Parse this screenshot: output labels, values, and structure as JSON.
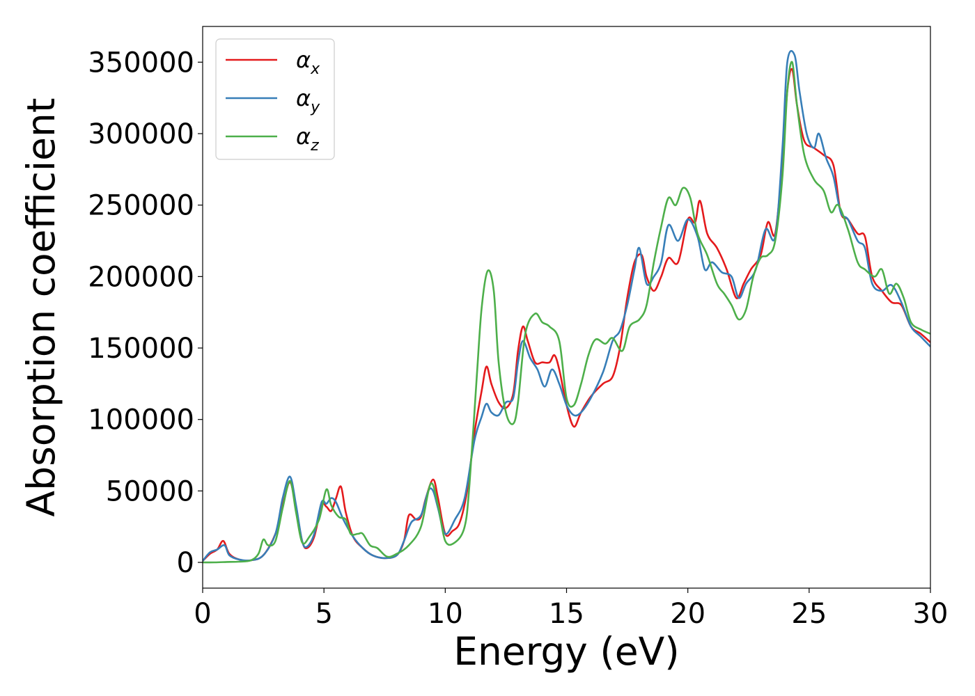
{
  "chart_data": {
    "type": "line",
    "title": "",
    "xlabel": "Energy (eV)",
    "ylabel": "Absorption coefficient",
    "xlim": [
      0,
      30
    ],
    "ylim": [
      -18000,
      375000
    ],
    "xticks": [
      0,
      5,
      10,
      15,
      20,
      25,
      30
    ],
    "xtick_labels": [
      "0",
      "5",
      "10",
      "15",
      "20",
      "25",
      "30"
    ],
    "yticks": [
      0,
      50000,
      100000,
      150000,
      200000,
      250000,
      300000,
      350000
    ],
    "ytick_labels": [
      "0",
      "50000",
      "100000",
      "150000",
      "200000",
      "250000",
      "300000",
      "350000"
    ],
    "grid": false,
    "legend_position": "top-left",
    "series": [
      {
        "name": "αx",
        "legend_base": "α",
        "legend_sub": "x",
        "color": "#e41a1c",
        "points": [
          [
            0,
            1000
          ],
          [
            0.3,
            6000
          ],
          [
            0.6,
            9000
          ],
          [
            0.85,
            15000
          ],
          [
            1.1,
            6000
          ],
          [
            1.5,
            2000
          ],
          [
            2.0,
            1500
          ],
          [
            2.5,
            5000
          ],
          [
            3.0,
            20000
          ],
          [
            3.3,
            40000
          ],
          [
            3.6,
            56000
          ],
          [
            3.85,
            38000
          ],
          [
            4.1,
            15000
          ],
          [
            4.3,
            10000
          ],
          [
            4.6,
            18000
          ],
          [
            4.9,
            40000
          ],
          [
            5.1,
            39000
          ],
          [
            5.3,
            36000
          ],
          [
            5.5,
            45000
          ],
          [
            5.7,
            53000
          ],
          [
            5.9,
            35000
          ],
          [
            6.2,
            18000
          ],
          [
            6.6,
            10000
          ],
          [
            7.0,
            5000
          ],
          [
            7.5,
            3000
          ],
          [
            8.0,
            5000
          ],
          [
            8.3,
            15000
          ],
          [
            8.5,
            33000
          ],
          [
            8.8,
            30000
          ],
          [
            9.0,
            32000
          ],
          [
            9.2,
            45000
          ],
          [
            9.5,
            58000
          ],
          [
            9.7,
            45000
          ],
          [
            10.0,
            20000
          ],
          [
            10.3,
            22000
          ],
          [
            10.6,
            28000
          ],
          [
            10.9,
            50000
          ],
          [
            11.2,
            90000
          ],
          [
            11.5,
            120000
          ],
          [
            11.7,
            137000
          ],
          [
            11.9,
            125000
          ],
          [
            12.2,
            112000
          ],
          [
            12.5,
            108000
          ],
          [
            12.8,
            118000
          ],
          [
            13.0,
            148000
          ],
          [
            13.2,
            165000
          ],
          [
            13.4,
            155000
          ],
          [
            13.7,
            140000
          ],
          [
            14.0,
            140000
          ],
          [
            14.3,
            140000
          ],
          [
            14.5,
            145000
          ],
          [
            14.7,
            135000
          ],
          [
            15.0,
            110000
          ],
          [
            15.3,
            95000
          ],
          [
            15.6,
            105000
          ],
          [
            16.0,
            116000
          ],
          [
            16.5,
            125000
          ],
          [
            16.9,
            130000
          ],
          [
            17.2,
            150000
          ],
          [
            17.5,
            185000
          ],
          [
            17.8,
            210000
          ],
          [
            18.1,
            215000
          ],
          [
            18.3,
            200000
          ],
          [
            18.6,
            190000
          ],
          [
            18.9,
            200000
          ],
          [
            19.2,
            213000
          ],
          [
            19.6,
            210000
          ],
          [
            20.0,
            240000
          ],
          [
            20.3,
            238000
          ],
          [
            20.5,
            253000
          ],
          [
            20.8,
            230000
          ],
          [
            21.2,
            220000
          ],
          [
            21.6,
            205000
          ],
          [
            22.0,
            185000
          ],
          [
            22.3,
            195000
          ],
          [
            22.6,
            205000
          ],
          [
            23.0,
            215000
          ],
          [
            23.3,
            238000
          ],
          [
            23.6,
            230000
          ],
          [
            23.9,
            280000
          ],
          [
            24.1,
            330000
          ],
          [
            24.3,
            345000
          ],
          [
            24.5,
            320000
          ],
          [
            24.8,
            295000
          ],
          [
            25.2,
            290000
          ],
          [
            25.6,
            285000
          ],
          [
            26.0,
            278000
          ],
          [
            26.3,
            245000
          ],
          [
            26.6,
            240000
          ],
          [
            27.0,
            230000
          ],
          [
            27.3,
            228000
          ],
          [
            27.6,
            200000
          ],
          [
            28.0,
            190000
          ],
          [
            28.4,
            182000
          ],
          [
            28.8,
            180000
          ],
          [
            29.2,
            165000
          ],
          [
            29.6,
            160000
          ],
          [
            30.0,
            154000
          ]
        ]
      },
      {
        "name": "αy",
        "legend_base": "α",
        "legend_sub": "y",
        "color": "#377eb8",
        "points": [
          [
            0,
            1000
          ],
          [
            0.3,
            7000
          ],
          [
            0.6,
            9000
          ],
          [
            0.9,
            12000
          ],
          [
            1.1,
            5000
          ],
          [
            1.5,
            2000
          ],
          [
            2.0,
            1500
          ],
          [
            2.5,
            5000
          ],
          [
            3.0,
            20000
          ],
          [
            3.3,
            45000
          ],
          [
            3.6,
            60000
          ],
          [
            3.85,
            40000
          ],
          [
            4.1,
            15000
          ],
          [
            4.3,
            11000
          ],
          [
            4.6,
            20000
          ],
          [
            4.9,
            42000
          ],
          [
            5.1,
            41000
          ],
          [
            5.3,
            45000
          ],
          [
            5.5,
            42000
          ],
          [
            5.8,
            30000
          ],
          [
            6.2,
            18000
          ],
          [
            6.6,
            10000
          ],
          [
            7.0,
            5000
          ],
          [
            7.5,
            3000
          ],
          [
            8.0,
            5000
          ],
          [
            8.3,
            15000
          ],
          [
            8.6,
            28000
          ],
          [
            9.0,
            33000
          ],
          [
            9.3,
            50000
          ],
          [
            9.5,
            50000
          ],
          [
            9.7,
            38000
          ],
          [
            10.0,
            20000
          ],
          [
            10.4,
            30000
          ],
          [
            10.8,
            45000
          ],
          [
            11.2,
            85000
          ],
          [
            11.5,
            102000
          ],
          [
            11.7,
            111000
          ],
          [
            11.9,
            105000
          ],
          [
            12.2,
            103000
          ],
          [
            12.5,
            112000
          ],
          [
            12.8,
            115000
          ],
          [
            13.0,
            140000
          ],
          [
            13.2,
            155000
          ],
          [
            13.5,
            143000
          ],
          [
            13.8,
            135000
          ],
          [
            14.1,
            123000
          ],
          [
            14.4,
            135000
          ],
          [
            14.7,
            125000
          ],
          [
            15.0,
            110000
          ],
          [
            15.3,
            103000
          ],
          [
            15.6,
            105000
          ],
          [
            16.0,
            115000
          ],
          [
            16.5,
            133000
          ],
          [
            16.9,
            155000
          ],
          [
            17.2,
            162000
          ],
          [
            17.5,
            180000
          ],
          [
            17.8,
            205000
          ],
          [
            18.0,
            220000
          ],
          [
            18.3,
            195000
          ],
          [
            18.6,
            200000
          ],
          [
            18.9,
            210000
          ],
          [
            19.2,
            236000
          ],
          [
            19.6,
            225000
          ],
          [
            20.0,
            240000
          ],
          [
            20.4,
            228000
          ],
          [
            20.7,
            205000
          ],
          [
            21.0,
            210000
          ],
          [
            21.4,
            203000
          ],
          [
            21.8,
            200000
          ],
          [
            22.1,
            185000
          ],
          [
            22.4,
            195000
          ],
          [
            22.8,
            205000
          ],
          [
            23.2,
            233000
          ],
          [
            23.6,
            228000
          ],
          [
            23.9,
            290000
          ],
          [
            24.1,
            350000
          ],
          [
            24.4,
            355000
          ],
          [
            24.6,
            330000
          ],
          [
            24.9,
            300000
          ],
          [
            25.2,
            290000
          ],
          [
            25.4,
            300000
          ],
          [
            25.7,
            283000
          ],
          [
            26.0,
            270000
          ],
          [
            26.3,
            245000
          ],
          [
            26.6,
            240000
          ],
          [
            27.0,
            225000
          ],
          [
            27.3,
            220000
          ],
          [
            27.6,
            195000
          ],
          [
            28.0,
            190000
          ],
          [
            28.4,
            194000
          ],
          [
            28.8,
            182000
          ],
          [
            29.2,
            165000
          ],
          [
            29.6,
            158000
          ],
          [
            30.0,
            151000
          ]
        ]
      },
      {
        "name": "αz",
        "legend_base": "α",
        "legend_sub": "z",
        "color": "#4daf4a",
        "points": [
          [
            0,
            0
          ],
          [
            0.5,
            0
          ],
          [
            1.0,
            300
          ],
          [
            1.5,
            500
          ],
          [
            2.0,
            1500
          ],
          [
            2.3,
            6000
          ],
          [
            2.5,
            16000
          ],
          [
            2.7,
            12000
          ],
          [
            3.0,
            15000
          ],
          [
            3.3,
            38000
          ],
          [
            3.6,
            57000
          ],
          [
            3.85,
            35000
          ],
          [
            4.1,
            14000
          ],
          [
            4.4,
            18000
          ],
          [
            4.8,
            30000
          ],
          [
            5.1,
            51000
          ],
          [
            5.3,
            40000
          ],
          [
            5.6,
            32000
          ],
          [
            5.9,
            30000
          ],
          [
            6.1,
            20000
          ],
          [
            6.4,
            20000
          ],
          [
            6.6,
            20000
          ],
          [
            6.9,
            12000
          ],
          [
            7.2,
            10000
          ],
          [
            7.6,
            4000
          ],
          [
            8.0,
            6000
          ],
          [
            8.5,
            12000
          ],
          [
            9.0,
            25000
          ],
          [
            9.4,
            55000
          ],
          [
            9.7,
            40000
          ],
          [
            10.0,
            15000
          ],
          [
            10.4,
            14000
          ],
          [
            10.8,
            25000
          ],
          [
            11.0,
            55000
          ],
          [
            11.3,
            130000
          ],
          [
            11.5,
            178000
          ],
          [
            11.75,
            204000
          ],
          [
            12.0,
            190000
          ],
          [
            12.2,
            140000
          ],
          [
            12.5,
            105000
          ],
          [
            12.8,
            97000
          ],
          [
            13.0,
            112000
          ],
          [
            13.3,
            160000
          ],
          [
            13.7,
            174000
          ],
          [
            14.0,
            168000
          ],
          [
            14.3,
            165000
          ],
          [
            14.7,
            155000
          ],
          [
            15.0,
            115000
          ],
          [
            15.3,
            110000
          ],
          [
            15.6,
            125000
          ],
          [
            15.9,
            145000
          ],
          [
            16.2,
            156000
          ],
          [
            16.6,
            153000
          ],
          [
            16.9,
            157000
          ],
          [
            17.3,
            148000
          ],
          [
            17.6,
            165000
          ],
          [
            18.0,
            170000
          ],
          [
            18.3,
            180000
          ],
          [
            18.6,
            210000
          ],
          [
            18.9,
            235000
          ],
          [
            19.2,
            255000
          ],
          [
            19.5,
            250000
          ],
          [
            19.8,
            262000
          ],
          [
            20.1,
            255000
          ],
          [
            20.4,
            230000
          ],
          [
            20.8,
            215000
          ],
          [
            21.2,
            195000
          ],
          [
            21.5,
            188000
          ],
          [
            21.8,
            180000
          ],
          [
            22.1,
            170000
          ],
          [
            22.4,
            177000
          ],
          [
            22.7,
            200000
          ],
          [
            23.0,
            213000
          ],
          [
            23.3,
            215000
          ],
          [
            23.6,
            225000
          ],
          [
            23.9,
            270000
          ],
          [
            24.1,
            330000
          ],
          [
            24.3,
            350000
          ],
          [
            24.5,
            320000
          ],
          [
            24.8,
            285000
          ],
          [
            25.2,
            268000
          ],
          [
            25.6,
            260000
          ],
          [
            25.9,
            245000
          ],
          [
            26.2,
            250000
          ],
          [
            26.6,
            233000
          ],
          [
            27.0,
            210000
          ],
          [
            27.3,
            205000
          ],
          [
            27.7,
            200000
          ],
          [
            28.0,
            205000
          ],
          [
            28.3,
            188000
          ],
          [
            28.6,
            195000
          ],
          [
            28.9,
            185000
          ],
          [
            29.2,
            168000
          ],
          [
            29.6,
            163000
          ],
          [
            30.0,
            160000
          ]
        ]
      }
    ]
  }
}
